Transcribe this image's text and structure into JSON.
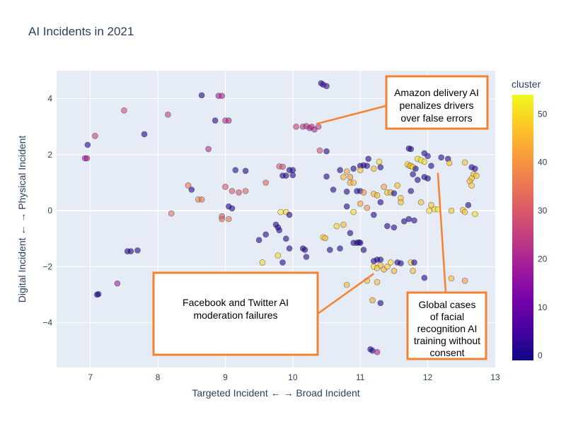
{
  "chart_data": {
    "type": "scatter",
    "title": "AI Incidents in 2021",
    "xlabel": "Targeted Incident ← → Broad Incident",
    "ylabel": "Digital Incident ← → Physical Incident",
    "xlim": [
      6.5,
      13.0
    ],
    "ylim": [
      -5.6,
      5.0
    ],
    "x_ticks": [
      "7",
      "8",
      "9",
      "10",
      "11",
      "12",
      "13"
    ],
    "y_ticks": [
      "4",
      "2",
      "0",
      "−2",
      "−4"
    ],
    "grid": true,
    "colorbar": {
      "title": "cluster",
      "range": [
        -1,
        54
      ],
      "ticks": [
        "50",
        "40",
        "30",
        "20",
        "10",
        "0"
      ],
      "colors": [
        "#0d0887",
        "#46039f",
        "#7201a8",
        "#9c179e",
        "#bd3786",
        "#d8576b",
        "#ed7953",
        "#fb9f3a",
        "#fdca26",
        "#f0f921"
      ]
    },
    "annotations": [
      {
        "text": [
          "Amazon delivery AI",
          "penalizes drivers",
          "over false errors"
        ],
        "x": 10.35,
        "y": 3.1
      },
      {
        "text": [
          "Facebook and Twitter AI",
          "moderation failures"
        ],
        "x": 11.2,
        "y": -2.25
      },
      {
        "text": [
          "Global cases",
          "of facial",
          "recognition AI",
          "training without",
          "consent"
        ],
        "x": 12.15,
        "y": 1.35
      }
    ],
    "points": [
      [
        10.42,
        4.55,
        2
      ],
      [
        10.45,
        4.5,
        3
      ],
      [
        10.5,
        4.45,
        4
      ],
      [
        8.65,
        4.12,
        1
      ],
      [
        8.9,
        4.1,
        19
      ],
      [
        8.95,
        4.1,
        20
      ],
      [
        7.5,
        3.58,
        28
      ],
      [
        8.15,
        3.43,
        26
      ],
      [
        9.0,
        3.22,
        22
      ],
      [
        9.05,
        3.22,
        21
      ],
      [
        8.85,
        3.22,
        2
      ],
      [
        10.05,
        3.0,
        26
      ],
      [
        10.15,
        3.0,
        24
      ],
      [
        10.2,
        3.02,
        23
      ],
      [
        10.25,
        2.95,
        20
      ],
      [
        10.28,
        3.0,
        22
      ],
      [
        10.32,
        2.9,
        21
      ],
      [
        10.38,
        3.0,
        24
      ],
      [
        7.07,
        2.67,
        26
      ],
      [
        7.8,
        2.73,
        1
      ],
      [
        6.96,
        2.35,
        1
      ],
      [
        8.75,
        2.2,
        22
      ],
      [
        6.92,
        1.87,
        19
      ],
      [
        6.95,
        1.87,
        18
      ],
      [
        10.4,
        2.15,
        30
      ],
      [
        10.5,
        2.12,
        1
      ],
      [
        9.15,
        1.45,
        1
      ],
      [
        9.3,
        1.42,
        1
      ],
      [
        9.8,
        1.58,
        30
      ],
      [
        9.85,
        1.57,
        28
      ],
      [
        9.95,
        1.45,
        1
      ],
      [
        10.0,
        1.45,
        2
      ],
      [
        9.85,
        1.25,
        1
      ],
      [
        9.9,
        1.25,
        2
      ],
      [
        10.0,
        1.27,
        1
      ],
      [
        10.5,
        1.22,
        1
      ],
      [
        10.7,
        1.45,
        2
      ],
      [
        10.8,
        1.4,
        42
      ],
      [
        10.9,
        1.5,
        1
      ],
      [
        11.0,
        1.6,
        0
      ],
      [
        11.05,
        1.62,
        1
      ],
      [
        11.1,
        1.6,
        2
      ],
      [
        11.12,
        1.85,
        1
      ],
      [
        11.2,
        1.5,
        45
      ],
      [
        11.28,
        1.75,
        50
      ],
      [
        11.3,
        1.55,
        2
      ],
      [
        11.0,
        1.45,
        47
      ],
      [
        10.75,
        1.2,
        45
      ],
      [
        10.85,
        1.2,
        40
      ],
      [
        10.6,
        0.75,
        1
      ],
      [
        10.85,
        1.0,
        45
      ],
      [
        10.9,
        1.0,
        46
      ],
      [
        10.95,
        0.7,
        1
      ],
      [
        11.0,
        0.7,
        2
      ],
      [
        10.8,
        0.68,
        1
      ],
      [
        11.05,
        0.65,
        40
      ],
      [
        11.2,
        0.6,
        45
      ],
      [
        11.25,
        0.55,
        45
      ],
      [
        11.35,
        0.85,
        42
      ],
      [
        11.4,
        0.65,
        46
      ],
      [
        11.45,
        0.65,
        45
      ],
      [
        11.5,
        0.62,
        1
      ],
      [
        11.55,
        0.9,
        46
      ],
      [
        11.6,
        0.45,
        47
      ],
      [
        11.6,
        0.3,
        46
      ],
      [
        11.7,
        1.65,
        50
      ],
      [
        11.73,
        1.6,
        48
      ],
      [
        11.75,
        1.6,
        46
      ],
      [
        11.78,
        1.55,
        52
      ],
      [
        11.82,
        1.5,
        1
      ],
      [
        11.85,
        1.85,
        50
      ],
      [
        11.9,
        1.8,
        53
      ],
      [
        11.95,
        1.75,
        50
      ],
      [
        11.95,
        2.05,
        1
      ],
      [
        12.0,
        1.95,
        2
      ],
      [
        12.05,
        1.6,
        1
      ],
      [
        11.72,
        2.22,
        2
      ],
      [
        11.75,
        2.2,
        1
      ],
      [
        12.2,
        1.9,
        1
      ],
      [
        12.3,
        1.85,
        1
      ],
      [
        12.32,
        1.7,
        46
      ],
      [
        12.55,
        1.72,
        47
      ],
      [
        12.65,
        1.55,
        1
      ],
      [
        12.7,
        1.5,
        2
      ],
      [
        12.68,
        1.3,
        45
      ],
      [
        12.72,
        1.25,
        48
      ],
      [
        12.65,
        1.15,
        47
      ],
      [
        12.62,
        1.05,
        45
      ],
      [
        12.65,
        0.9,
        47
      ],
      [
        11.78,
        1.3,
        2
      ],
      [
        11.85,
        1.1,
        1
      ],
      [
        11.95,
        1.2,
        1
      ],
      [
        12.0,
        1.15,
        0
      ],
      [
        11.75,
        0.7,
        1
      ],
      [
        11.9,
        0.3,
        46
      ],
      [
        12.05,
        0.2,
        47
      ],
      [
        12.1,
        0.05,
        49
      ],
      [
        12.02,
        0.0,
        50
      ],
      [
        12.15,
        0.05,
        52
      ],
      [
        12.35,
        0.0,
        46
      ],
      [
        12.52,
        0.02,
        46
      ],
      [
        12.55,
        -0.05,
        48
      ],
      [
        12.6,
        0.2,
        1
      ],
      [
        12.7,
        -0.12,
        50
      ],
      [
        11.72,
        -0.3,
        1
      ],
      [
        11.8,
        -0.35,
        2
      ],
      [
        11.65,
        -0.38,
        1
      ],
      [
        11.5,
        -0.6,
        2
      ],
      [
        11.3,
        0.3,
        1
      ],
      [
        11.0,
        0.25,
        42
      ],
      [
        11.1,
        0.1,
        40
      ],
      [
        10.8,
        0.15,
        1
      ],
      [
        10.9,
        -0.05,
        50
      ],
      [
        11.2,
        -0.15,
        1
      ],
      [
        10.75,
        -0.5,
        45
      ],
      [
        10.65,
        -0.55,
        50
      ],
      [
        10.85,
        -0.8,
        1
      ],
      [
        11.4,
        -0.55,
        1
      ],
      [
        10.45,
        -0.95,
        48
      ],
      [
        10.48,
        -0.98,
        46
      ],
      [
        10.55,
        -1.4,
        1
      ],
      [
        10.7,
        -1.35,
        1
      ],
      [
        10.9,
        -1.15,
        2
      ],
      [
        10.95,
        -1.15,
        1
      ],
      [
        10.98,
        -1.13,
        1
      ],
      [
        11.0,
        -1.15,
        2
      ],
      [
        11.05,
        -1.4,
        1
      ],
      [
        11.2,
        -1.8,
        2
      ],
      [
        11.25,
        -1.75,
        1
      ],
      [
        11.3,
        -1.75,
        1
      ],
      [
        11.2,
        -2.0,
        50
      ],
      [
        11.25,
        -2.05,
        48
      ],
      [
        11.3,
        -1.95,
        46
      ],
      [
        11.35,
        -2.1,
        45
      ],
      [
        11.4,
        -2.0,
        47
      ],
      [
        11.45,
        -1.85,
        50
      ],
      [
        11.5,
        -2.15,
        45
      ],
      [
        11.55,
        -1.85,
        1
      ],
      [
        11.6,
        -1.88,
        1
      ],
      [
        11.75,
        -1.85,
        48
      ],
      [
        11.8,
        -1.85,
        1
      ],
      [
        11.78,
        -2.15,
        46
      ],
      [
        11.95,
        -2.4,
        1
      ],
      [
        11.1,
        -2.5,
        47
      ],
      [
        10.8,
        -2.65,
        45
      ],
      [
        11.25,
        -2.55,
        46
      ],
      [
        11.18,
        -3.2,
        42
      ],
      [
        11.3,
        -3.3,
        1
      ],
      [
        12.35,
        -2.42,
        45
      ],
      [
        12.55,
        -2.5,
        42
      ],
      [
        11.15,
        -4.95,
        1
      ],
      [
        11.18,
        -5.0,
        2
      ],
      [
        11.25,
        -5.05,
        20
      ],
      [
        10.15,
        -1.35,
        1
      ],
      [
        10.18,
        -1.4,
        2
      ],
      [
        10.2,
        -1.65,
        1
      ],
      [
        9.95,
        -1.35,
        1
      ],
      [
        9.6,
        -0.85,
        1
      ],
      [
        9.5,
        -1.05,
        1
      ],
      [
        9.75,
        -0.5,
        1
      ],
      [
        9.78,
        -0.6,
        1
      ],
      [
        9.8,
        -0.7,
        2
      ],
      [
        9.9,
        -1.0,
        1
      ],
      [
        9.85,
        -1.85,
        1
      ],
      [
        9.78,
        -1.6,
        50
      ],
      [
        9.55,
        -1.85,
        50
      ],
      [
        9.82,
        -0.05,
        52
      ],
      [
        9.9,
        -0.05,
        48
      ],
      [
        9.95,
        -0.15,
        1
      ],
      [
        9.05,
        0.15,
        1
      ],
      [
        9.1,
        0.08,
        1
      ],
      [
        8.95,
        -0.2,
        30
      ],
      [
        8.95,
        -0.3,
        32
      ],
      [
        9.05,
        -0.3,
        35
      ],
      [
        8.6,
        0.4,
        38
      ],
      [
        8.65,
        0.4,
        34
      ],
      [
        8.2,
        -0.1,
        35
      ],
      [
        8.45,
        0.9,
        35
      ],
      [
        8.5,
        0.75,
        1
      ],
      [
        9.0,
        0.85,
        30
      ],
      [
        9.1,
        0.7,
        30
      ],
      [
        9.2,
        0.65,
        28
      ],
      [
        9.3,
        0.7,
        32
      ],
      [
        9.6,
        1.0,
        32
      ],
      [
        7.55,
        -1.45,
        1
      ],
      [
        7.6,
        -1.45,
        1
      ],
      [
        7.7,
        -1.42,
        1
      ],
      [
        7.1,
        -3.0,
        1
      ],
      [
        7.12,
        -2.98,
        1
      ],
      [
        7.4,
        -2.6,
        18
      ]
    ]
  }
}
